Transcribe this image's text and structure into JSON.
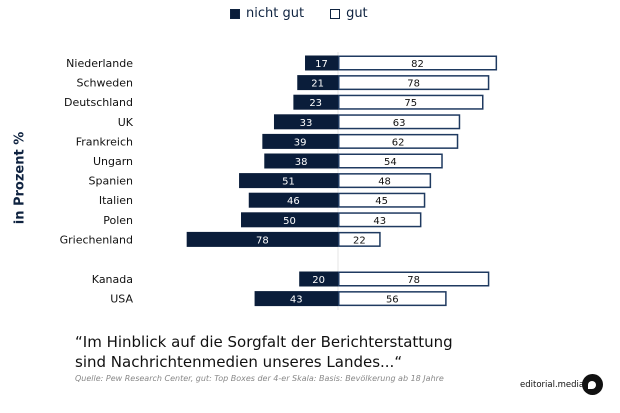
{
  "chart_data": {
    "type": "bar",
    "orientation": "horizontal-diverging",
    "title": "“Im Hinblick auf die Sorgfalt der Berichterstattung sind Nachrichtenmedien unseres Landes...“",
    "ylabel": "in Prozent %",
    "legend": {
      "placement": "top-center",
      "entries": [
        "nicht gut",
        "gut"
      ]
    },
    "categories": [
      "Niederlande",
      "Schweden",
      "Deutschland",
      "UK",
      "Frankreich",
      "Ungarn",
      "Spanien",
      "Italien",
      "Polen",
      "Griechenland",
      "Kanada",
      "USA"
    ],
    "group_break_after": "Griechenland",
    "series": [
      {
        "name": "nicht gut",
        "direction": "left",
        "color": "#0a1d3a",
        "values": [
          17,
          21,
          23,
          33,
          39,
          38,
          51,
          46,
          50,
          78,
          20,
          43
        ]
      },
      {
        "name": "gut",
        "direction": "right",
        "color": "#ffffff",
        "border": "#1f3a60",
        "values": [
          82,
          78,
          75,
          63,
          62,
          54,
          48,
          45,
          43,
          22,
          78,
          56
        ]
      }
    ],
    "xlim": [
      -80,
      85
    ],
    "grid": false
  },
  "legend": {
    "neg_label": "nicht gut",
    "pos_label": "gut"
  },
  "axis": {
    "ylabel": "in Prozent %"
  },
  "footer": {
    "quote": "“Im Hinblick auf die Sorgfalt der Berichterstattung sind Nachrichtenmedien unseres Landes...“",
    "source": "Quelle: Pew Research Center, gut: Top Boxes der 4-er Skala: Basis: Bevölkerung ab 18 Jahre",
    "brand": "editorial.media"
  }
}
